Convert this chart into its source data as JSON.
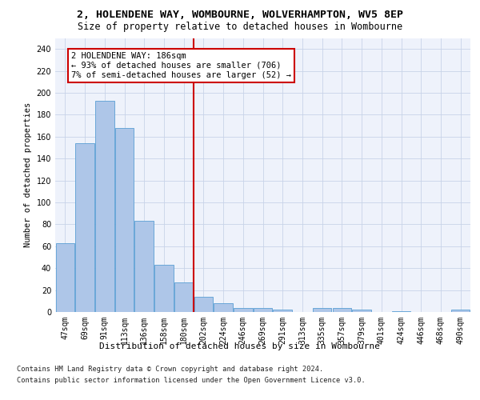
{
  "title_line1": "2, HOLENDENE WAY, WOMBOURNE, WOLVERHAMPTON, WV5 8EP",
  "title_line2": "Size of property relative to detached houses in Wombourne",
  "xlabel": "Distribution of detached houses by size in Wombourne",
  "ylabel": "Number of detached properties",
  "bar_color": "#aec6e8",
  "bar_edge_color": "#5a9fd4",
  "categories": [
    "47sqm",
    "69sqm",
    "91sqm",
    "113sqm",
    "136sqm",
    "158sqm",
    "180sqm",
    "202sqm",
    "224sqm",
    "246sqm",
    "269sqm",
    "291sqm",
    "313sqm",
    "335sqm",
    "357sqm",
    "379sqm",
    "401sqm",
    "424sqm",
    "446sqm",
    "468sqm",
    "490sqm"
  ],
  "values": [
    63,
    154,
    193,
    168,
    83,
    43,
    27,
    14,
    8,
    4,
    4,
    2,
    0,
    4,
    4,
    2,
    0,
    1,
    0,
    0,
    2
  ],
  "ylim": [
    0,
    250
  ],
  "yticks": [
    0,
    20,
    40,
    60,
    80,
    100,
    120,
    140,
    160,
    180,
    200,
    220,
    240
  ],
  "vline_x": 6.5,
  "vline_color": "#cc0000",
  "annotation_text": "2 HOLENDENE WAY: 186sqm\n← 93% of detached houses are smaller (706)\n7% of semi-detached houses are larger (52) →",
  "annotation_box_color": "white",
  "annotation_box_edge_color": "#cc0000",
  "footer_line1": "Contains HM Land Registry data © Crown copyright and database right 2024.",
  "footer_line2": "Contains public sector information licensed under the Open Government Licence v3.0.",
  "background_color": "#eef2fb",
  "grid_color": "#c8d4e8",
  "title_fontsize": 9.5,
  "subtitle_fontsize": 8.5,
  "tick_fontsize": 7,
  "ylabel_fontsize": 7.5,
  "xlabel_fontsize": 8,
  "annotation_fontsize": 7.5,
  "footer_fontsize": 6.2
}
